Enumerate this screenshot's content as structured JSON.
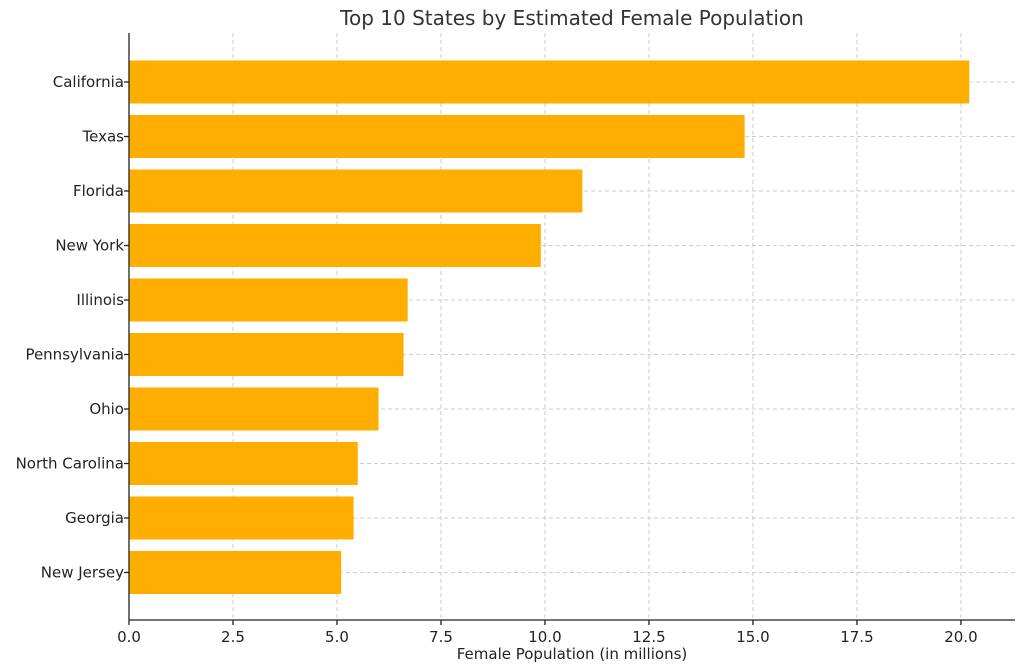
{
  "chart_data": {
    "type": "bar",
    "orientation": "horizontal",
    "title": "Top 10 States by Estimated Female Population",
    "xlabel": "Female Population (in millions)",
    "ylabel": "",
    "categories": [
      "California",
      "Texas",
      "Florida",
      "New York",
      "Illinois",
      "Pennsylvania",
      "Ohio",
      "North Carolina",
      "Georgia",
      "New Jersey"
    ],
    "values": [
      20.2,
      14.8,
      10.9,
      9.9,
      6.7,
      6.6,
      6.0,
      5.5,
      5.4,
      5.1
    ],
    "xlim": [
      0,
      21.3
    ],
    "xticks": [
      0.0,
      2.5,
      5.0,
      7.5,
      10.0,
      12.5,
      15.0,
      17.5,
      20.0
    ],
    "xtick_labels": [
      "0.0",
      "2.5",
      "5.0",
      "7.5",
      "10.0",
      "12.5",
      "15.0",
      "17.5",
      "20.0"
    ],
    "bar_color": "#FFAE00",
    "grid": true
  }
}
